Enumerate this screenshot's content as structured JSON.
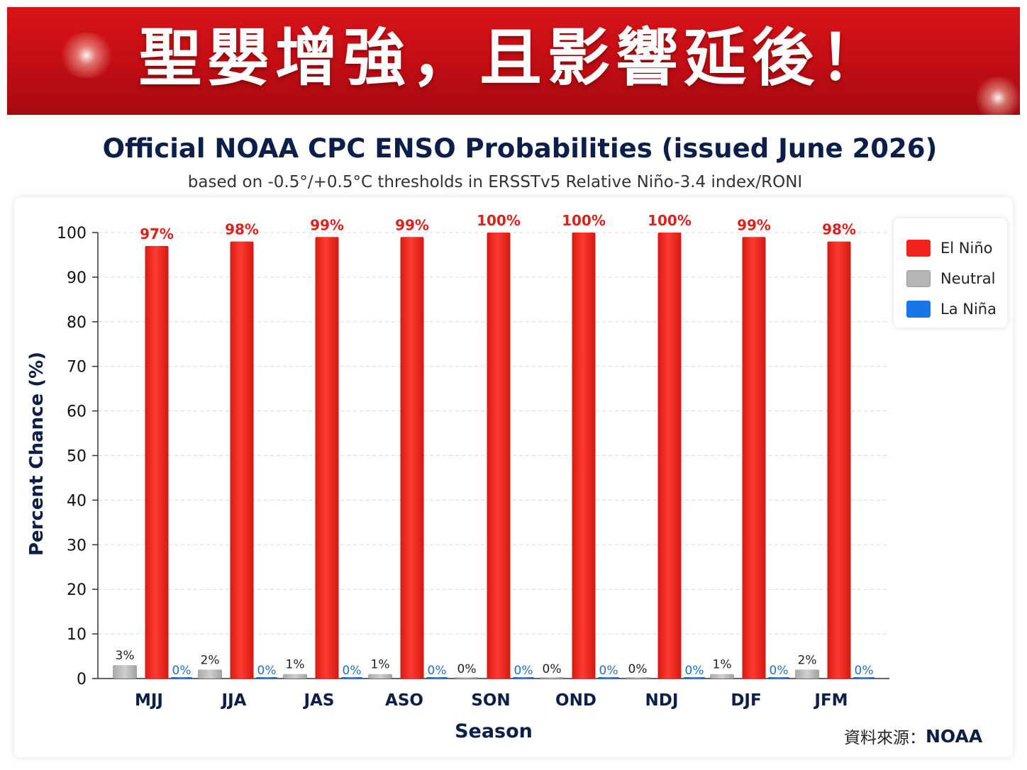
{
  "banner": {
    "title": "聖嬰增強，且影響延後！"
  },
  "chart_data": {
    "type": "bar",
    "title": "Official NOAA CPC ENSO Probabilities (issued June 2026)",
    "subtitle": "based on -0.5°/+0.5°C thresholds in ERSSTv5 Relative Niño-3.4 index/RONI",
    "xlabel": "Season",
    "ylabel": "Percent Chance (%)",
    "ylim": [
      0,
      100
    ],
    "yticks": [
      0,
      10,
      20,
      30,
      40,
      50,
      60,
      70,
      80,
      90,
      100
    ],
    "grid": true,
    "legend_position": "top-right",
    "categories": [
      "MJJ",
      "JJA",
      "JAS",
      "ASO",
      "SON",
      "OND",
      "NDJ",
      "DJF",
      "JFM"
    ],
    "series": [
      {
        "name": "Neutral",
        "color": "#b5b5b5",
        "label_color": "#222222",
        "values": [
          3,
          2,
          1,
          1,
          0,
          0,
          0,
          1,
          2
        ],
        "labels": [
          "3%",
          "2%",
          "1%",
          "1%",
          "0%",
          "0%",
          "0%",
          "1%",
          "2%"
        ]
      },
      {
        "name": "El Niño",
        "color": "#f2231c",
        "label_color": "#e0201a",
        "values": [
          97,
          98,
          99,
          99,
          100,
          100,
          100,
          99,
          98
        ],
        "labels": [
          "97%",
          "98%",
          "99%",
          "99%",
          "100%",
          "100%",
          "100%",
          "99%",
          "98%"
        ]
      },
      {
        "name": "La Niña",
        "color": "#1877e6",
        "label_color": "#1a6fd6",
        "values": [
          0,
          0,
          0,
          0,
          0,
          0,
          0,
          0,
          0
        ],
        "labels": [
          "0%",
          "0%",
          "0%",
          "0%",
          "0%",
          "0%",
          "0%",
          "0%",
          "0%"
        ]
      }
    ],
    "legend": [
      {
        "name": "El Niño",
        "color": "#f2231c"
      },
      {
        "name": "Neutral",
        "color": "#b5b5b5"
      },
      {
        "name": "La Niña",
        "color": "#1877e6"
      }
    ]
  },
  "source": {
    "label": "資料來源：",
    "value": "NOAA"
  }
}
